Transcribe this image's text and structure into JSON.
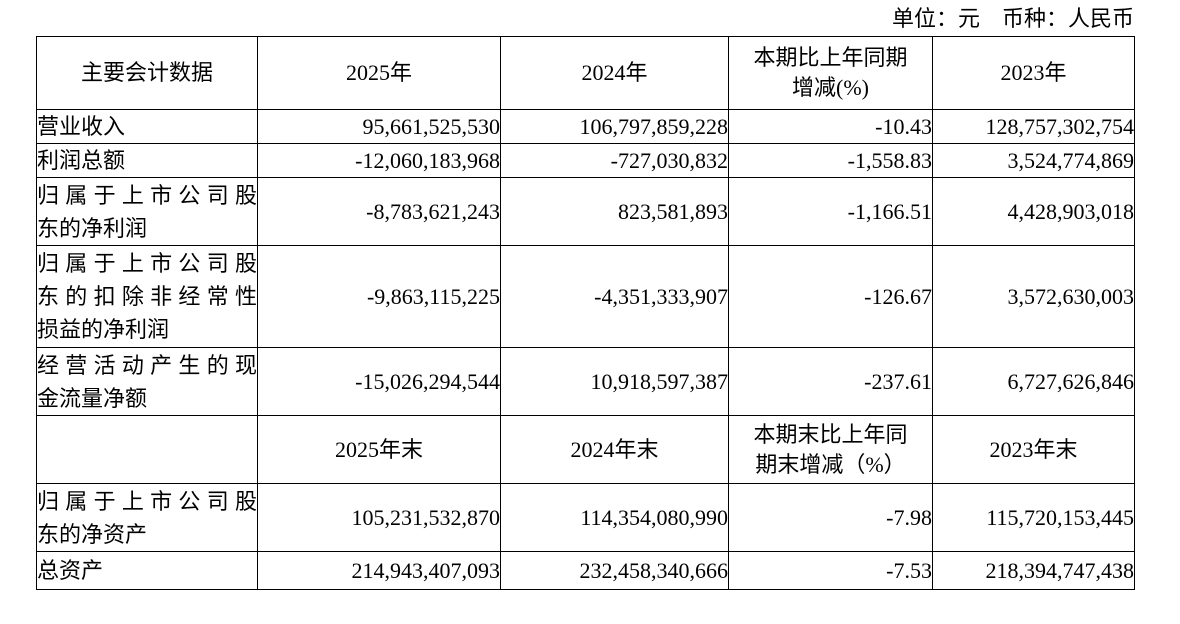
{
  "unit_note": "单位：元　币种：人民币",
  "table": {
    "header": {
      "main": "主要会计数据",
      "y2025": "2025年",
      "y2024": "2024年",
      "change": "本期比上年同期\n增减(%)",
      "y2023": "2023年"
    },
    "rows": [
      {
        "label": [
          "营业收入"
        ],
        "y2025": "95,661,525,530",
        "y2024": "106,797,859,228",
        "change": "-10.43",
        "y2023": "128,757,302,754"
      },
      {
        "label": [
          "利润总额"
        ],
        "y2025": "-12,060,183,968",
        "y2024": "-727,030,832",
        "change": "-1,558.83",
        "y2023": "3,524,774,869"
      },
      {
        "label": [
          "归属于上市公司股",
          "东的净利润"
        ],
        "y2025": "-8,783,621,243",
        "y2024": "823,581,893",
        "change": "-1,166.51",
        "y2023": "4,428,903,018"
      },
      {
        "label": [
          "归属于上市公司股",
          "东的扣除非经常性",
          "损益的净利润"
        ],
        "y2025": "-9,863,115,225",
        "y2024": "-4,351,333,907",
        "change": "-126.67",
        "y2023": "3,572,630,003"
      },
      {
        "label": [
          "经营活动产生的现",
          "金流量净额"
        ],
        "y2025": "-15,026,294,544",
        "y2024": "10,918,597,387",
        "change": "-237.61",
        "y2023": "6,727,626,846"
      }
    ],
    "subheader": {
      "main": "",
      "y2025": "2025年末",
      "y2024": "2024年末",
      "change": "本期末比上年同\n期末增减（%）",
      "y2023": "2023年末"
    },
    "rows2": [
      {
        "label": [
          "归属于上市公司股",
          "东的净资产"
        ],
        "y2025": "105,231,532,870",
        "y2024": "114,354,080,990",
        "change": "-7.98",
        "y2023": "115,720,153,445"
      },
      {
        "label": [
          "总资产"
        ],
        "y2025": "214,943,407,093",
        "y2024": "232,458,340,666",
        "change": "-7.53",
        "y2023": "218,394,747,438"
      }
    ]
  }
}
